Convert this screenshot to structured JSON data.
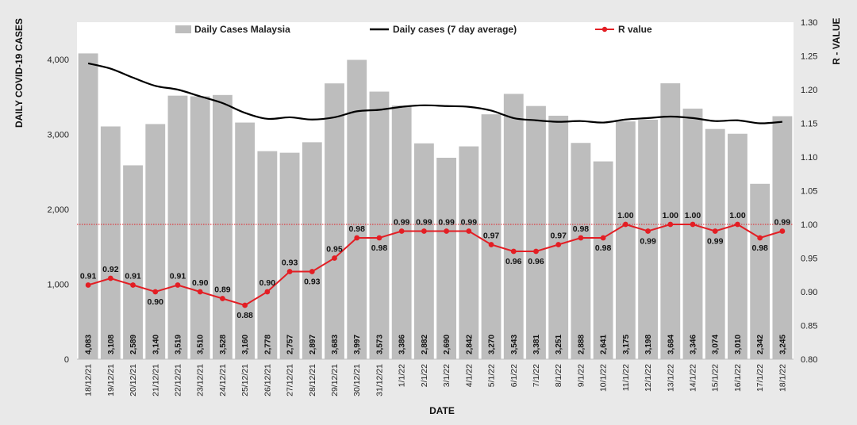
{
  "chart_data": {
    "type": "bar",
    "categories": [
      "18/12/21",
      "19/12/21",
      "20/12/21",
      "21/12/21",
      "22/12/21",
      "23/12/21",
      "24/12/21",
      "25/12/21",
      "26/12/21",
      "27/12/21",
      "28/12/21",
      "29/12/21",
      "30/12/21",
      "31/12/21",
      "1/1/22",
      "2/1/22",
      "3/1/22",
      "4/1/22",
      "5/1/22",
      "6/1/22",
      "7/1/22",
      "8/1/22",
      "9/1/22",
      "10/1/22",
      "11/1/22",
      "12/1/22",
      "13/1/22",
      "14/1/22",
      "15/1/22",
      "16/1/22",
      "17/1/22",
      "18/1/22"
    ],
    "series": [
      {
        "name": "Daily Cases Malaysia",
        "type": "bar",
        "axis": "left",
        "color": "#bdbdbd",
        "values": [
          4083,
          3108,
          2589,
          3140,
          3519,
          3510,
          3528,
          3160,
          2778,
          2757,
          2897,
          3683,
          3997,
          3573,
          3386,
          2882,
          2690,
          2842,
          3270,
          3543,
          3381,
          3251,
          2888,
          2641,
          3175,
          3198,
          3684,
          3346,
          3074,
          3010,
          2342,
          3245
        ],
        "labels": [
          "4,083",
          "3,108",
          "2,589",
          "3,140",
          "3,519",
          "3,510",
          "3,528",
          "3,160",
          "2,778",
          "2,757",
          "2,897",
          "3,683",
          "3,997",
          "3,573",
          "3,386",
          "2,882",
          "2,690",
          "2,842",
          "3,270",
          "3,543",
          "3,381",
          "3,251",
          "2,888",
          "2,641",
          "3,175",
          "3,198",
          "3,684",
          "3,346",
          "3,074",
          "3,010",
          "2,342",
          "3,245"
        ]
      },
      {
        "name": "Daily cases (7 day average)",
        "type": "line",
        "axis": "left",
        "color": "#000000",
        "values": [
          3950,
          3880,
          3760,
          3650,
          3600,
          3510,
          3420,
          3290,
          3210,
          3230,
          3200,
          3230,
          3310,
          3330,
          3370,
          3390,
          3380,
          3370,
          3320,
          3220,
          3190,
          3170,
          3180,
          3160,
          3200,
          3220,
          3240,
          3220,
          3180,
          3190,
          3150,
          3170
        ]
      },
      {
        "name": "R value",
        "type": "line",
        "axis": "right",
        "color": "#e31e24",
        "values": [
          0.91,
          0.92,
          0.91,
          0.9,
          0.91,
          0.9,
          0.89,
          0.88,
          0.9,
          0.93,
          0.93,
          0.95,
          0.98,
          0.98,
          0.99,
          0.99,
          0.99,
          0.99,
          0.97,
          0.96,
          0.96,
          0.97,
          0.98,
          0.98,
          1.0,
          0.99,
          1.0,
          1.0,
          0.99,
          1.0,
          0.98,
          0.99
        ],
        "labels": [
          "0.91",
          "0.92",
          "0.91",
          "0.90",
          "0.91",
          "0.90",
          "0.89",
          "0.88",
          "0.90",
          "0.93",
          "0.93",
          "0.95",
          "0.98",
          "0.98",
          "0.99",
          "0.99",
          "0.99",
          "0.99",
          "0.97",
          "0.96",
          "0.96",
          "0.97",
          "0.98",
          "0.98",
          "1.00",
          "0.99",
          "1.00",
          "1.00",
          "0.99",
          "1.00",
          "0.98",
          "0.99"
        ]
      }
    ],
    "reference_line": {
      "axis": "right",
      "value": 1.0,
      "style": "dotted",
      "color": "#e31e24"
    },
    "xlabel": "DATE",
    "ylabel": "DAILY COVID-19 CASES",
    "y2label": "R - VALUE",
    "ylim": [
      0,
      4500
    ],
    "yticks": [
      "0",
      "1,000",
      "2,000",
      "3,000",
      "4,000"
    ],
    "y2lim": [
      0.8,
      1.3
    ],
    "y2ticks": [
      "0.80",
      "0.85",
      "0.90",
      "0.95",
      "1.00",
      "1.05",
      "1.10",
      "1.15",
      "1.20",
      "1.25",
      "1.30"
    ],
    "legend_position": "top",
    "grid": false
  }
}
